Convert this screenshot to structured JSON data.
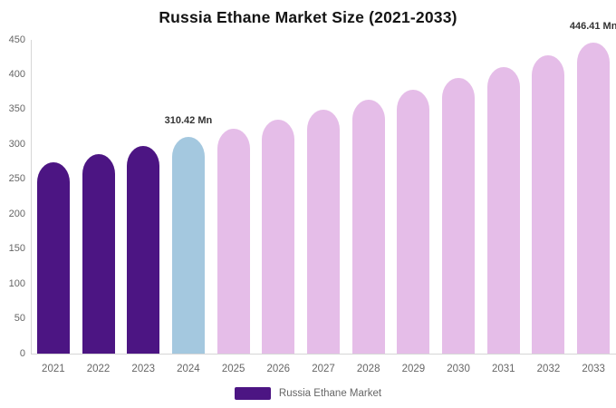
{
  "chart_data": {
    "type": "bar",
    "title": "Russia Ethane Market Size (2021-2033)",
    "categories": [
      "2021",
      "2022",
      "2023",
      "2024",
      "2025",
      "2026",
      "2027",
      "2028",
      "2029",
      "2030",
      "2031",
      "2032",
      "2033"
    ],
    "values": [
      275,
      286,
      298,
      310.42,
      323,
      336,
      350,
      364,
      379,
      395,
      411,
      428,
      446.41
    ],
    "unit": "Mn",
    "xlabel": "",
    "ylabel": "",
    "ylim": [
      0,
      450
    ],
    "ytick_step": 50,
    "yticks": [
      "0",
      "50",
      "100",
      "150",
      "200",
      "250",
      "300",
      "350",
      "400",
      "450"
    ],
    "grid": false,
    "legend_position": "bottom",
    "bar_colors": [
      "#4C1583",
      "#4C1583",
      "#4C1583",
      "#A4C8DF",
      "#E5BDE8",
      "#E5BDE8",
      "#E5BDE8",
      "#E5BDE8",
      "#E5BDE8",
      "#E5BDE8",
      "#E5BDE8",
      "#E5BDE8",
      "#E5BDE8"
    ],
    "annotations": [
      {
        "text": "310.42 Mn",
        "category": "2024"
      },
      {
        "text": "446.41 Mn",
        "category": "2033"
      }
    ]
  },
  "legend": {
    "label": "Russia Ethane Market",
    "swatch_color": "#4C1583"
  },
  "colors": {
    "series_dark_purple": "#4C1583",
    "series_light_blue": "#A4C8DF",
    "series_light_pink": "#E5BDE8",
    "axis_line": "#D6D6D6",
    "tick_text": "#666666",
    "annotation_text": "#333333",
    "title_text": "#141414",
    "background": "#FFFFFF"
  }
}
